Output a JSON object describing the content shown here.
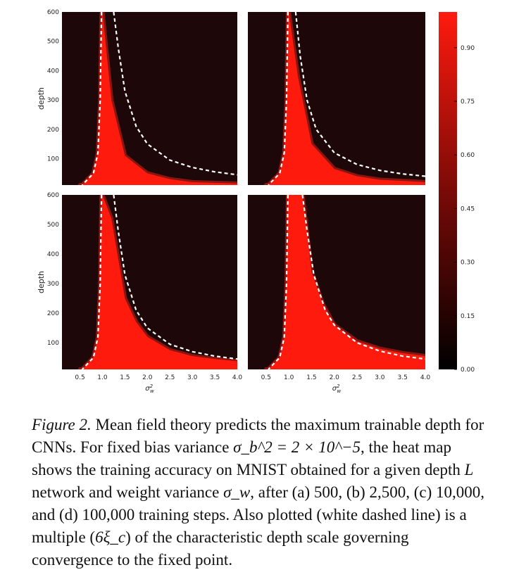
{
  "chart_data": [
    {
      "type": "heatmap",
      "panel": "top-left",
      "ylabel": "depth",
      "xlabel": "",
      "xlim": [
        0.1,
        4.0
      ],
      "ylim": [
        10,
        600
      ],
      "y_ticks": [
        "100",
        "200",
        "300",
        "400",
        "500",
        "600"
      ],
      "x_ticks": [],
      "training_steps": 500,
      "trainable_region": [
        {
          "sigma_w2": 1.0,
          "max_depth": 600
        },
        {
          "sigma_w2": 1.2,
          "max_depth": 300
        },
        {
          "sigma_w2": 1.5,
          "max_depth": 110
        },
        {
          "sigma_w2": 2.0,
          "max_depth": 50
        },
        {
          "sigma_w2": 2.5,
          "max_depth": 30
        },
        {
          "sigma_w2": 3.0,
          "max_depth": 20
        },
        {
          "sigma_w2": 4.0,
          "max_depth": 15
        }
      ],
      "dashed_curve_outer": [
        {
          "sigma_w2": 1.25,
          "depth": 600
        },
        {
          "sigma_w2": 1.35,
          "depth": 480
        },
        {
          "sigma_w2": 1.5,
          "depth": 330
        },
        {
          "sigma_w2": 1.75,
          "depth": 210
        },
        {
          "sigma_w2": 2.0,
          "depth": 150
        },
        {
          "sigma_w2": 2.5,
          "depth": 95
        },
        {
          "sigma_w2": 3.0,
          "depth": 70
        },
        {
          "sigma_w2": 3.5,
          "depth": 55
        },
        {
          "sigma_w2": 4.0,
          "depth": 45
        }
      ],
      "dashed_curve_inner": [
        {
          "sigma_w2": 0.98,
          "depth": 600
        },
        {
          "sigma_w2": 0.95,
          "depth": 300
        },
        {
          "sigma_w2": 0.9,
          "depth": 120
        },
        {
          "sigma_w2": 0.8,
          "depth": 50
        },
        {
          "sigma_w2": 0.55,
          "depth": 10
        }
      ]
    },
    {
      "type": "heatmap",
      "panel": "top-right",
      "ylabel": "",
      "xlabel": "",
      "xlim": [
        0.1,
        4.0
      ],
      "ylim": [
        10,
        600
      ],
      "y_ticks": [],
      "x_ticks": [],
      "training_steps": 2500,
      "trainable_region": [
        {
          "sigma_w2": 1.0,
          "max_depth": 600
        },
        {
          "sigma_w2": 1.2,
          "max_depth": 380
        },
        {
          "sigma_w2": 1.5,
          "max_depth": 150
        },
        {
          "sigma_w2": 2.0,
          "max_depth": 65
        },
        {
          "sigma_w2": 2.5,
          "max_depth": 40
        },
        {
          "sigma_w2": 3.0,
          "max_depth": 28
        },
        {
          "sigma_w2": 4.0,
          "max_depth": 20
        }
      ],
      "dashed_curve_outer": [
        {
          "sigma_w2": 1.15,
          "depth": 600
        },
        {
          "sigma_w2": 1.25,
          "depth": 450
        },
        {
          "sigma_w2": 1.4,
          "depth": 300
        },
        {
          "sigma_w2": 1.6,
          "depth": 200
        },
        {
          "sigma_w2": 2.0,
          "depth": 120
        },
        {
          "sigma_w2": 2.5,
          "depth": 80
        },
        {
          "sigma_w2": 3.0,
          "depth": 60
        },
        {
          "sigma_w2": 3.5,
          "depth": 48
        },
        {
          "sigma_w2": 4.0,
          "depth": 40
        }
      ],
      "dashed_curve_inner": [
        {
          "sigma_w2": 0.98,
          "depth": 600
        },
        {
          "sigma_w2": 0.95,
          "depth": 300
        },
        {
          "sigma_w2": 0.9,
          "depth": 120
        },
        {
          "sigma_w2": 0.8,
          "depth": 50
        },
        {
          "sigma_w2": 0.55,
          "depth": 10
        }
      ]
    },
    {
      "type": "heatmap",
      "panel": "bottom-left",
      "ylabel": "depth",
      "xlabel": "σ_w^2",
      "xlim": [
        0.1,
        4.0
      ],
      "ylim": [
        10,
        600
      ],
      "y_ticks": [
        "100",
        "200",
        "300",
        "400",
        "500",
        "600"
      ],
      "x_ticks": [
        "0.5",
        "1.0",
        "1.5",
        "2.0",
        "2.5",
        "3.0",
        "3.5",
        "4.0"
      ],
      "training_steps": 10000,
      "trainable_region": [
        {
          "sigma_w2": 1.0,
          "max_depth": 600
        },
        {
          "sigma_w2": 1.2,
          "max_depth": 520
        },
        {
          "sigma_w2": 1.5,
          "max_depth": 250
        },
        {
          "sigma_w2": 1.75,
          "max_depth": 170
        },
        {
          "sigma_w2": 2.0,
          "max_depth": 120
        },
        {
          "sigma_w2": 2.5,
          "max_depth": 75
        },
        {
          "sigma_w2": 3.0,
          "max_depth": 55
        },
        {
          "sigma_w2": 3.5,
          "max_depth": 45
        },
        {
          "sigma_w2": 4.0,
          "max_depth": 38
        }
      ],
      "dashed_curve_outer": [
        {
          "sigma_w2": 1.25,
          "depth": 600
        },
        {
          "sigma_w2": 1.35,
          "depth": 480
        },
        {
          "sigma_w2": 1.5,
          "depth": 330
        },
        {
          "sigma_w2": 1.75,
          "depth": 210
        },
        {
          "sigma_w2": 2.0,
          "depth": 150
        },
        {
          "sigma_w2": 2.5,
          "depth": 95
        },
        {
          "sigma_w2": 3.0,
          "depth": 70
        },
        {
          "sigma_w2": 3.5,
          "depth": 55
        },
        {
          "sigma_w2": 4.0,
          "depth": 45
        }
      ],
      "dashed_curve_inner": [
        {
          "sigma_w2": 0.98,
          "depth": 600
        },
        {
          "sigma_w2": 0.95,
          "depth": 300
        },
        {
          "sigma_w2": 0.9,
          "depth": 120
        },
        {
          "sigma_w2": 0.8,
          "depth": 50
        },
        {
          "sigma_w2": 0.55,
          "depth": 10
        }
      ]
    },
    {
      "type": "heatmap",
      "panel": "bottom-right",
      "ylabel": "",
      "xlabel": "σ_w^2",
      "xlim": [
        0.1,
        4.0
      ],
      "ylim": [
        10,
        600
      ],
      "y_ticks": [],
      "x_ticks": [
        "0.5",
        "1.0",
        "1.5",
        "2.0",
        "2.5",
        "3.0",
        "3.5",
        "4.0"
      ],
      "training_steps": 100000,
      "trainable_region": [
        {
          "sigma_w2": 1.0,
          "max_depth": 600
        },
        {
          "sigma_w2": 1.3,
          "max_depth": 600
        },
        {
          "sigma_w2": 1.5,
          "max_depth": 340
        },
        {
          "sigma_w2": 1.75,
          "max_depth": 230
        },
        {
          "sigma_w2": 2.0,
          "max_depth": 160
        },
        {
          "sigma_w2": 2.5,
          "max_depth": 105
        },
        {
          "sigma_w2": 3.0,
          "max_depth": 80
        },
        {
          "sigma_w2": 3.5,
          "max_depth": 65
        },
        {
          "sigma_w2": 4.0,
          "max_depth": 55
        }
      ],
      "dashed_curve_outer": [
        {
          "sigma_w2": 1.3,
          "depth": 600
        },
        {
          "sigma_w2": 1.4,
          "depth": 480
        },
        {
          "sigma_w2": 1.55,
          "depth": 330
        },
        {
          "sigma_w2": 1.8,
          "depth": 210
        },
        {
          "sigma_w2": 2.0,
          "depth": 160
        },
        {
          "sigma_w2": 2.5,
          "depth": 100
        },
        {
          "sigma_w2": 3.0,
          "depth": 72
        },
        {
          "sigma_w2": 3.5,
          "depth": 55
        },
        {
          "sigma_w2": 4.0,
          "depth": 45
        }
      ],
      "dashed_curve_inner": [
        {
          "sigma_w2": 0.98,
          "depth": 600
        },
        {
          "sigma_w2": 0.95,
          "depth": 300
        },
        {
          "sigma_w2": 0.9,
          "depth": 120
        },
        {
          "sigma_w2": 0.8,
          "depth": 50
        },
        {
          "sigma_w2": 0.55,
          "depth": 10
        }
      ]
    }
  ],
  "colorbar": {
    "range": [
      0.0,
      1.0
    ],
    "ticks": [
      "0.00",
      "0.15",
      "0.30",
      "0.45",
      "0.60",
      "0.75",
      "0.90"
    ],
    "color_low": "#000000",
    "color_high": "#ff1a0e",
    "background_color": "#1e0708"
  },
  "caption": {
    "figure_label": "Figure 2.",
    "part1": " Mean field theory predicts the maximum trainable depth for CNNs. For fixed bias variance ",
    "bias_equation": "σ_b^2 = 2 × 10^−5",
    "part2": ", the heat map shows the training accuracy on MNIST obtained for a given depth ",
    "depth_symbol": "L",
    "part3": " network and weight variance ",
    "weight_symbol": "σ_w",
    "part4": ", after (a) 500, (b) 2,500, (c) 10,000, and (d) 100,000 training steps. Also plotted (white dashed line) is a multiple (",
    "multiple_symbol": "6ξ_c",
    "part5": ") of the characteristic depth scale governing convergence to the fixed point."
  }
}
